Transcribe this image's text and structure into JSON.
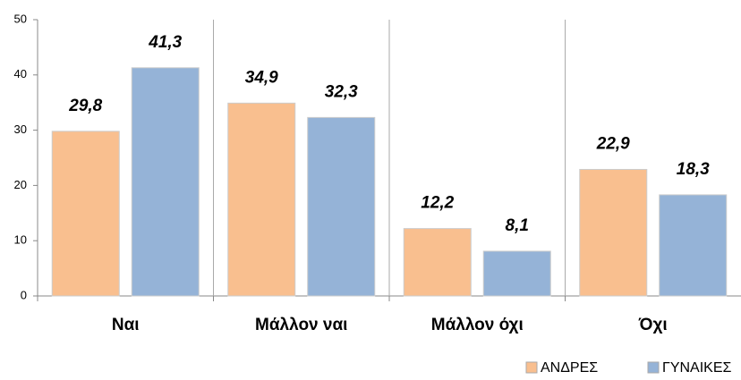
{
  "chart_data": {
    "type": "bar",
    "categories": [
      "Ναι",
      "Μάλλον ναι",
      "Μάλλον όχι",
      "Όχι"
    ],
    "series": [
      {
        "name": "ΑΝΔΡΕΣ",
        "color": "#f9bf8f",
        "values": [
          29.8,
          34.9,
          12.2,
          22.9
        ],
        "value_labels": [
          "29,8",
          "34,9",
          "12,2",
          "22,9"
        ]
      },
      {
        "name": "ΓΥΝΑΙΚΕΣ",
        "color": "#95b3d7",
        "values": [
          41.3,
          32.3,
          8.1,
          18.3
        ],
        "value_labels": [
          "41,3",
          "32,3",
          "8,1",
          "18,3"
        ]
      }
    ],
    "ylim": [
      0,
      50
    ],
    "yticks": [
      0,
      10,
      20,
      30,
      40,
      50
    ],
    "legend": "bottom-right"
  }
}
